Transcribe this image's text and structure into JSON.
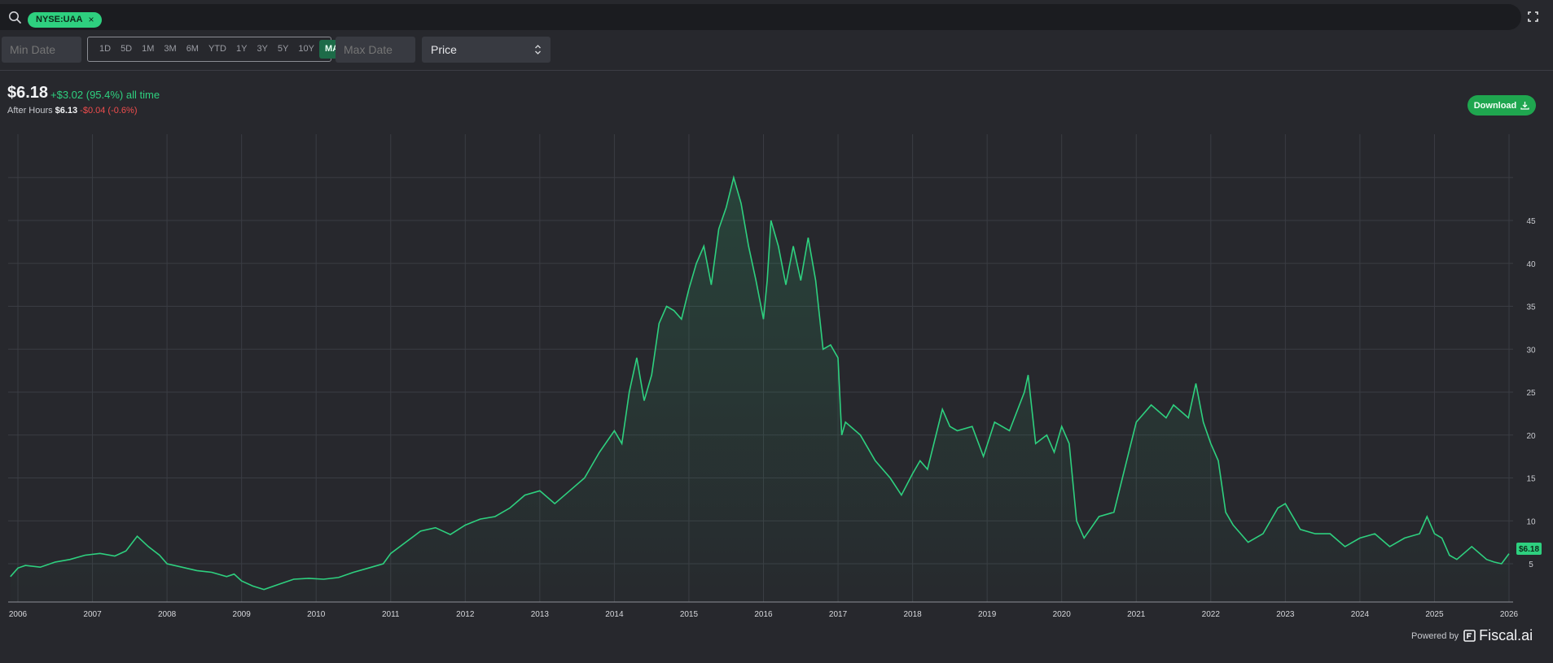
{
  "search": {
    "ticker_chip": "NYSE:UAA",
    "chip_close": "×"
  },
  "controls": {
    "min_date_placeholder": "Min Date",
    "max_date_placeholder": "Max Date",
    "ranges": [
      "1D",
      "5D",
      "1M",
      "3M",
      "6M",
      "YTD",
      "1Y",
      "3Y",
      "5Y",
      "10Y",
      "MAX"
    ],
    "active_range": "MAX",
    "metric": "Price"
  },
  "quote": {
    "price": "$6.18",
    "change": "+$3.02 (95.4%) all time",
    "after_hours_label": "After Hours",
    "after_hours_price": "$6.13",
    "after_hours_change": "-$0.04 (-0.6%)"
  },
  "download_label": "Download",
  "footer": {
    "powered_by": "Powered by",
    "brand": "Fiscal.ai"
  },
  "colors": {
    "line": "#2ed07f",
    "negative": "#ef4d4d",
    "background": "#27282d",
    "accent": "#1fa64f"
  },
  "chart_data": {
    "type": "area",
    "title": "",
    "xlabel": "",
    "ylabel": "",
    "x_ticks": [
      "2006",
      "2007",
      "2008",
      "2009",
      "2010",
      "2011",
      "2012",
      "2013",
      "2014",
      "2015",
      "2016",
      "2017",
      "2018",
      "2019",
      "2020",
      "2021",
      "2022",
      "2023",
      "2024",
      "2025",
      "2026"
    ],
    "y_ticks": [
      5,
      10,
      15,
      20,
      25,
      30,
      35,
      40,
      45
    ],
    "ylim": [
      0,
      50
    ],
    "last_value_label": "$6.18",
    "grid": true,
    "series": [
      {
        "name": "",
        "x": [
          2005.9,
          2006.0,
          2006.1,
          2006.3,
          2006.5,
          2006.7,
          2006.9,
          2007.1,
          2007.3,
          2007.45,
          2007.6,
          2007.75,
          2007.9,
          2008.0,
          2008.2,
          2008.4,
          2008.6,
          2008.8,
          2008.9,
          2009.0,
          2009.15,
          2009.3,
          2009.5,
          2009.7,
          2009.9,
          2010.1,
          2010.3,
          2010.5,
          2010.7,
          2010.9,
          2011.0,
          2011.2,
          2011.4,
          2011.6,
          2011.8,
          2012.0,
          2012.2,
          2012.4,
          2012.6,
          2012.8,
          2013.0,
          2013.2,
          2013.4,
          2013.6,
          2013.8,
          2014.0,
          2014.1,
          2014.2,
          2014.3,
          2014.4,
          2014.5,
          2014.6,
          2014.7,
          2014.8,
          2014.9,
          2015.0,
          2015.1,
          2015.2,
          2015.3,
          2015.4,
          2015.5,
          2015.6,
          2015.7,
          2015.8,
          2015.9,
          2016.0,
          2016.05,
          2016.1,
          2016.2,
          2016.3,
          2016.4,
          2016.5,
          2016.6,
          2016.7,
          2016.8,
          2016.9,
          2017.0,
          2017.05,
          2017.1,
          2017.3,
          2017.5,
          2017.7,
          2017.85,
          2018.0,
          2018.1,
          2018.2,
          2018.4,
          2018.5,
          2018.6,
          2018.8,
          2018.95,
          2019.1,
          2019.3,
          2019.5,
          2019.55,
          2019.65,
          2019.8,
          2019.9,
          2020.0,
          2020.1,
          2020.2,
          2020.3,
          2020.5,
          2020.7,
          2020.9,
          2021.0,
          2021.2,
          2021.4,
          2021.5,
          2021.7,
          2021.8,
          2021.9,
          2022.0,
          2022.1,
          2022.2,
          2022.3,
          2022.5,
          2022.7,
          2022.9,
          2023.0,
          2023.2,
          2023.4,
          2023.6,
          2023.8,
          2024.0,
          2024.2,
          2024.4,
          2024.6,
          2024.8,
          2024.9,
          2025.0,
          2025.1,
          2025.2,
          2025.3,
          2025.5,
          2025.7,
          2025.8,
          2025.9,
          2026.0
        ],
        "y": [
          3.5,
          4.5,
          4.8,
          4.6,
          5.2,
          5.5,
          6.0,
          6.2,
          5.9,
          6.5,
          8.2,
          7.0,
          6.0,
          5.0,
          4.6,
          4.2,
          4.0,
          3.5,
          3.8,
          3.0,
          2.4,
          2.0,
          2.6,
          3.2,
          3.3,
          3.2,
          3.4,
          4.0,
          4.5,
          5.0,
          6.2,
          7.5,
          8.8,
          9.2,
          8.4,
          9.5,
          10.2,
          10.5,
          11.5,
          13.0,
          13.5,
          12.0,
          13.5,
          15.0,
          18.0,
          20.5,
          19.0,
          25.0,
          29.0,
          24.0,
          27.0,
          33.0,
          35.0,
          34.5,
          33.5,
          37.0,
          40.0,
          42.0,
          37.5,
          44.0,
          46.5,
          50.0,
          47.0,
          42.0,
          38.0,
          33.5,
          38.0,
          45.0,
          42.0,
          37.5,
          42.0,
          38.0,
          43.0,
          38.0,
          30.0,
          30.5,
          29.0,
          20.0,
          21.5,
          20.0,
          17.0,
          15.0,
          13.0,
          15.5,
          17.0,
          16.0,
          23.0,
          21.0,
          20.5,
          21.0,
          17.5,
          21.5,
          20.5,
          25.0,
          27.0,
          19.0,
          20.0,
          18.0,
          21.0,
          19.0,
          10.0,
          8.0,
          10.5,
          11.0,
          18.0,
          21.5,
          23.5,
          22.0,
          23.5,
          22.0,
          26.0,
          21.5,
          19.0,
          17.0,
          11.0,
          9.5,
          7.5,
          8.5,
          11.5,
          12.0,
          9.0,
          8.5,
          8.5,
          7.0,
          8.0,
          8.5,
          7.0,
          8.0,
          8.5,
          10.5,
          8.5,
          8.0,
          6.0,
          5.5,
          7.0,
          5.5,
          5.2,
          5.0,
          6.18
        ]
      }
    ]
  }
}
